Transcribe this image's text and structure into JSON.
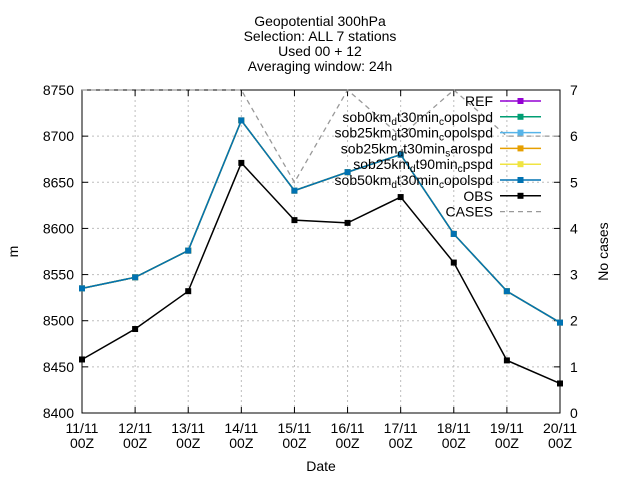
{
  "chart_data": {
    "type": "line",
    "title_lines": [
      "Geopotential 300hPa",
      "Selection: ALL      7 stations",
      "Used 00 + 12",
      "Averaging window: 24h"
    ],
    "xlabel": "Date",
    "ylabel": "m",
    "y2label": "No cases",
    "categories": [
      [
        "11/11",
        "00Z"
      ],
      [
        "12/11",
        "00Z"
      ],
      [
        "13/11",
        "00Z"
      ],
      [
        "14/11",
        "00Z"
      ],
      [
        "15/11",
        "00Z"
      ],
      [
        "16/11",
        "00Z"
      ],
      [
        "17/11",
        "00Z"
      ],
      [
        "18/11",
        "00Z"
      ],
      [
        "19/11",
        "00Z"
      ],
      [
        "20/11",
        "00Z"
      ]
    ],
    "ylim": [
      8400,
      8750
    ],
    "yticks": [
      8400,
      8450,
      8500,
      8550,
      8600,
      8650,
      8700,
      8750
    ],
    "y2lim": [
      0,
      7
    ],
    "y2ticks": [
      0,
      1,
      2,
      3,
      4,
      5,
      6,
      7
    ],
    "grid": true,
    "legend_position": "top-right",
    "series": [
      {
        "name": "REF",
        "name_parts": [
          [
            "REF",
            "n"
          ]
        ],
        "color": "#9400d3",
        "axis": "y",
        "dash": false,
        "marker": "square",
        "values": [
          8535,
          8547,
          8576,
          8717,
          8641,
          8661,
          8680,
          8594,
          8532,
          8498
        ]
      },
      {
        "name": "sob0kmdt30mincopolspd",
        "name_parts": [
          [
            "sob0km",
            "n"
          ],
          [
            "d",
            "sub"
          ],
          [
            "t30min",
            "n"
          ],
          [
            "c",
            "sub"
          ],
          [
            "opolspd",
            "n"
          ]
        ],
        "color": "#009e73",
        "axis": "y",
        "dash": false,
        "marker": "square",
        "values": [
          8535,
          8547,
          8576,
          8717,
          8641,
          8661,
          8680,
          8594,
          8532,
          8498
        ]
      },
      {
        "name": "sob25kmdt30mincopolspd",
        "name_parts": [
          [
            "sob25km",
            "n"
          ],
          [
            "d",
            "sub"
          ],
          [
            "t30min",
            "n"
          ],
          [
            "c",
            "sub"
          ],
          [
            "opolspd",
            "n"
          ]
        ],
        "color": "#56b4e9",
        "axis": "y",
        "dash": false,
        "marker": "square",
        "values": [
          8535,
          8547,
          8576,
          8717,
          8641,
          8661,
          8680,
          8594,
          8532,
          8498
        ]
      },
      {
        "name": "sob25kmdt30minsarospd",
        "name_parts": [
          [
            "sob25km",
            "n"
          ],
          [
            "d",
            "sub"
          ],
          [
            "t30min",
            "n"
          ],
          [
            "s",
            "sub"
          ],
          [
            "arospd",
            "n"
          ]
        ],
        "color": "#e69f00",
        "axis": "y",
        "dash": false,
        "marker": "square",
        "values": [
          8535,
          8547,
          8576,
          8717,
          8641,
          8661,
          8680,
          8594,
          8532,
          8498
        ]
      },
      {
        "name": "sob25kmdt90mincpspd",
        "name_parts": [
          [
            "sob25km",
            "n"
          ],
          [
            "d",
            "sub"
          ],
          [
            "t90min",
            "n"
          ],
          [
            "c",
            "sub"
          ],
          [
            "pspd",
            "n"
          ]
        ],
        "color": "#f0e442",
        "axis": "y",
        "dash": false,
        "marker": "square",
        "values": [
          8535,
          8547,
          8576,
          8717,
          8641,
          8661,
          8680,
          8594,
          8532,
          8498
        ]
      },
      {
        "name": "sob50kmdt30mincopolspd",
        "name_parts": [
          [
            "sob50km",
            "n"
          ],
          [
            "d",
            "sub"
          ],
          [
            "t30min",
            "n"
          ],
          [
            "c",
            "sub"
          ],
          [
            "opolspd",
            "n"
          ]
        ],
        "color": "#0072b2",
        "axis": "y",
        "dash": false,
        "marker": "square",
        "values": [
          8535,
          8547,
          8576,
          8717,
          8641,
          8661,
          8680,
          8594,
          8532,
          8498
        ]
      },
      {
        "name": "OBS",
        "name_parts": [
          [
            "OBS",
            "n"
          ]
        ],
        "color": "#000000",
        "axis": "y",
        "dash": false,
        "marker": "square",
        "values": [
          8458,
          8491,
          8532,
          8671,
          8609,
          8606,
          8634,
          8563,
          8457,
          8432
        ]
      },
      {
        "name": "CASES",
        "name_parts": [
          [
            "CASES",
            "n"
          ]
        ],
        "color": "#999999",
        "axis": "y2",
        "dash": true,
        "marker": "none",
        "values": [
          7,
          7,
          7,
          7,
          5,
          7,
          6,
          7,
          6,
          6
        ]
      }
    ]
  }
}
